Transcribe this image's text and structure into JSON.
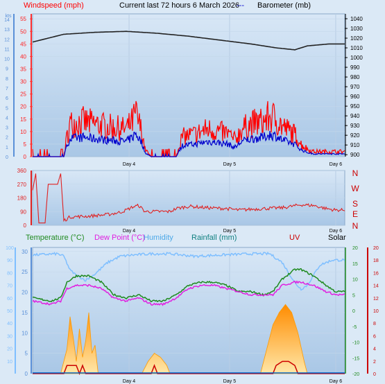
{
  "header": {
    "windspeed_label": "Windspeed (mph)",
    "title": "Current last 72 hours 6 March 2026",
    "dash": "---",
    "barometer_label": "Barometer (mb)"
  },
  "legend_bottom": {
    "temperature": "Temperature (°C)",
    "dewpoint": "Dew Point (°C)",
    "humidity": "Humidity",
    "rainfall": "Rainfall (mm)",
    "uv": "UV",
    "solar": "Solar"
  },
  "colors": {
    "background": "#dbe9f6",
    "plot_top": "#cfe1f4",
    "plot_bottom": "#a9c7e6",
    "wind": "#ff0000",
    "gust": "#0000cc",
    "barometer": "#222222",
    "direction": "#e02020",
    "temperature": "#1f8a1f",
    "dewpoint": "#e020e0",
    "humidity": "#7fbfff",
    "rain": "#0066cc",
    "uv": "#cc0000",
    "solar": "#ff9900"
  },
  "chart_data": [
    {
      "type": "line",
      "title": "Current last 72 hours 6 March 2026",
      "x_ticks": [
        "Day 4",
        "Day 5",
        "Day 6"
      ],
      "y_left_label": "Windspeed (mph)",
      "y_left_ticks_mph": [
        0,
        5,
        10,
        15,
        20,
        25,
        30,
        35,
        40,
        45,
        50,
        55
      ],
      "y_left_ticks_kts": [
        0,
        1,
        2,
        3,
        4,
        5,
        6,
        7,
        8,
        9,
        10,
        11,
        12,
        13,
        14
      ],
      "y_left_unit_kts": "kts",
      "y_right_label": "Barometer (mb)",
      "y_right_ticks": [
        900,
        910,
        920,
        930,
        940,
        950,
        960,
        970,
        980,
        990,
        1000,
        1010,
        1020,
        1030,
        1040
      ],
      "series": [
        {
          "name": "Windspeed",
          "profile": [
            [
              0,
              0
            ],
            [
              8,
              0
            ],
            [
              10,
              0
            ],
            [
              11,
              8
            ],
            [
              12,
              13
            ],
            [
              16,
              14
            ],
            [
              20,
              13
            ],
            [
              24,
              12
            ],
            [
              30,
              11
            ],
            [
              32,
              14
            ],
            [
              33,
              17
            ],
            [
              35,
              10
            ],
            [
              36,
              3
            ],
            [
              38,
              0
            ],
            [
              44,
              0
            ],
            [
              46,
              0
            ],
            [
              47,
              5
            ],
            [
              48,
              8
            ],
            [
              52,
              9
            ],
            [
              56,
              11
            ],
            [
              60,
              10
            ],
            [
              63,
              9
            ],
            [
              64,
              7
            ],
            [
              65,
              7
            ],
            [
              67,
              11
            ],
            [
              70,
              13
            ],
            [
              74,
              14
            ],
            [
              76,
              16
            ],
            [
              78,
              15
            ],
            [
              80,
              12
            ],
            [
              84,
              9
            ],
            [
              86,
              5
            ],
            [
              88,
              3
            ],
            [
              90,
              2
            ],
            [
              92,
              2
            ],
            [
              100,
              2
            ]
          ]
        },
        {
          "name": "Barometer",
          "profile": [
            [
              0,
              1016
            ],
            [
              10,
              1024
            ],
            [
              20,
              1026
            ],
            [
              30,
              1027
            ],
            [
              40,
              1025
            ],
            [
              50,
              1022
            ],
            [
              60,
              1018
            ],
            [
              70,
              1014
            ],
            [
              78,
              1010
            ],
            [
              84,
              1008
            ],
            [
              88,
              1012
            ],
            [
              95,
              1014
            ],
            [
              100,
              1014
            ]
          ]
        }
      ]
    },
    {
      "type": "line",
      "y_ticks": [
        0,
        90,
        180,
        270,
        360
      ],
      "direction_labels": [
        "N",
        "W",
        "S",
        "E",
        "N"
      ],
      "x_ticks": [
        "Day 4",
        "Day 5",
        "Day 6"
      ],
      "series": [
        {
          "name": "Wind direction",
          "profile": [
            [
              0,
              230
            ],
            [
              1,
              340
            ],
            [
              2,
              15
            ],
            [
              4,
              15
            ],
            [
              5,
              270
            ],
            [
              8,
              270
            ],
            [
              9,
              340
            ],
            [
              10,
              30
            ],
            [
              12,
              55
            ],
            [
              18,
              60
            ],
            [
              24,
              70
            ],
            [
              28,
              85
            ],
            [
              30,
              100
            ],
            [
              32,
              120
            ],
            [
              34,
              130
            ],
            [
              36,
              90
            ],
            [
              44,
              90
            ],
            [
              46,
              110
            ],
            [
              50,
              125
            ],
            [
              56,
              115
            ],
            [
              62,
              110
            ],
            [
              66,
              100
            ],
            [
              70,
              105
            ],
            [
              74,
              110
            ],
            [
              80,
              115
            ],
            [
              86,
              135
            ],
            [
              90,
              130
            ],
            [
              94,
              110
            ],
            [
              97,
              100
            ],
            [
              100,
              100
            ]
          ]
        }
      ]
    },
    {
      "type": "line",
      "x_ticks": [
        "Day 4",
        "Day 5",
        "Day 6"
      ],
      "y_left_ticks": [
        0,
        5,
        10,
        15,
        20,
        25,
        30
      ],
      "y_humidity_ticks": [
        0,
        10,
        20,
        30,
        40,
        50,
        60,
        70,
        80,
        90,
        100
      ],
      "y_right_ticks": [
        -20,
        -15,
        -10,
        -5,
        0,
        5,
        10,
        15,
        20
      ],
      "y_rain_ticks": [
        0,
        2,
        4,
        6,
        8,
        10,
        12,
        14,
        16,
        18,
        20
      ],
      "series": [
        {
          "name": "Temperature (°C)",
          "profile": [
            [
              0,
              4
            ],
            [
              6,
              3
            ],
            [
              9,
              4
            ],
            [
              11,
              9
            ],
            [
              14,
              11
            ],
            [
              18,
              11
            ],
            [
              22,
              9
            ],
            [
              26,
              5
            ],
            [
              30,
              4
            ],
            [
              34,
              5
            ],
            [
              38,
              3
            ],
            [
              42,
              3
            ],
            [
              46,
              5
            ],
            [
              50,
              8
            ],
            [
              54,
              9
            ],
            [
              58,
              9
            ],
            [
              62,
              8
            ],
            [
              66,
              6
            ],
            [
              70,
              6
            ],
            [
              74,
              5
            ],
            [
              77,
              6
            ],
            [
              80,
              10
            ],
            [
              84,
              13
            ],
            [
              86,
              13
            ],
            [
              90,
              11
            ],
            [
              94,
              8
            ],
            [
              97,
              6
            ],
            [
              100,
              6
            ]
          ]
        },
        {
          "name": "Dew Point (°C)",
          "profile": [
            [
              0,
              3
            ],
            [
              6,
              2
            ],
            [
              9,
              3
            ],
            [
              11,
              7
            ],
            [
              14,
              8
            ],
            [
              18,
              8
            ],
            [
              22,
              7
            ],
            [
              26,
              4
            ],
            [
              30,
              3
            ],
            [
              34,
              4
            ],
            [
              38,
              2
            ],
            [
              42,
              2
            ],
            [
              46,
              4
            ],
            [
              50,
              7
            ],
            [
              54,
              8
            ],
            [
              58,
              8
            ],
            [
              62,
              7
            ],
            [
              66,
              6
            ],
            [
              70,
              5
            ],
            [
              74,
              5
            ],
            [
              77,
              5
            ],
            [
              80,
              8
            ],
            [
              84,
              9
            ],
            [
              86,
              9
            ],
            [
              90,
              8
            ],
            [
              94,
              6
            ],
            [
              97,
              5
            ],
            [
              100,
              5
            ]
          ]
        },
        {
          "name": "Humidity",
          "profile": [
            [
              0,
              94
            ],
            [
              8,
              95
            ],
            [
              10,
              93
            ],
            [
              12,
              82
            ],
            [
              14,
              78
            ],
            [
              17,
              74
            ],
            [
              20,
              79
            ],
            [
              24,
              88
            ],
            [
              28,
              93
            ],
            [
              32,
              94
            ],
            [
              38,
              95
            ],
            [
              44,
              95
            ],
            [
              52,
              93
            ],
            [
              60,
              94
            ],
            [
              70,
              95
            ],
            [
              76,
              95
            ],
            [
              80,
              88
            ],
            [
              84,
              72
            ],
            [
              86,
              67
            ],
            [
              88,
              70
            ],
            [
              92,
              86
            ],
            [
              96,
              90
            ],
            [
              100,
              90
            ]
          ]
        },
        {
          "name": "Solar",
          "profile": [
            [
              0,
              0
            ],
            [
              9,
              0
            ],
            [
              11,
              6
            ],
            [
              12,
              14
            ],
            [
              13,
              9
            ],
            [
              14,
              3
            ],
            [
              15,
              11
            ],
            [
              16,
              4
            ],
            [
              17,
              8
            ],
            [
              18,
              15
            ],
            [
              19,
              5
            ],
            [
              20,
              7
            ],
            [
              21,
              0
            ],
            [
              35,
              0
            ],
            [
              37,
              3
            ],
            [
              39,
              5
            ],
            [
              41,
              4
            ],
            [
              43,
              2
            ],
            [
              44,
              0
            ],
            [
              73,
              0
            ],
            [
              75,
              6
            ],
            [
              77,
              12
            ],
            [
              79,
              15
            ],
            [
              81,
              17
            ],
            [
              83,
              15
            ],
            [
              85,
              10
            ],
            [
              87,
              3
            ],
            [
              88,
              0
            ],
            [
              100,
              0
            ]
          ]
        },
        {
          "name": "UV",
          "profile": [
            [
              0,
              0
            ],
            [
              10,
              0
            ],
            [
              11,
              2
            ],
            [
              14,
              2
            ],
            [
              15,
              0
            ],
            [
              16,
              2
            ],
            [
              17,
              0
            ],
            [
              38,
              0
            ],
            [
              39,
              2
            ],
            [
              40,
              0
            ],
            [
              77,
              0
            ],
            [
              78,
              2
            ],
            [
              80,
              3
            ],
            [
              82,
              3
            ],
            [
              84,
              2
            ],
            [
              85,
              0
            ],
            [
              100,
              0
            ]
          ]
        },
        {
          "name": "Rainfall (mm)",
          "profile": [
            [
              0,
              0
            ],
            [
              100,
              0
            ]
          ]
        }
      ]
    }
  ]
}
